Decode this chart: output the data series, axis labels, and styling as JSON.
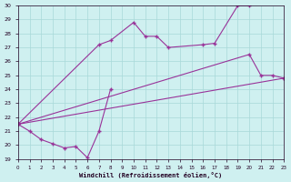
{
  "xlabel": "Windchill (Refroidissement éolien,°C)",
  "background_color": "#cff0f0",
  "grid_color": "#a8d8d8",
  "line_color": "#993399",
  "xlim": [
    0,
    23
  ],
  "ylim": [
    19,
    30
  ],
  "xticks": [
    0,
    1,
    2,
    3,
    4,
    5,
    6,
    7,
    8,
    9,
    10,
    11,
    12,
    13,
    14,
    15,
    16,
    17,
    18,
    19,
    20,
    21,
    22,
    23
  ],
  "yticks": [
    19,
    20,
    21,
    22,
    23,
    24,
    25,
    26,
    27,
    28,
    29,
    30
  ],
  "curve1": {
    "x": [
      0,
      1,
      2,
      3,
      4,
      5,
      6,
      7,
      8
    ],
    "y": [
      21.5,
      21.0,
      20.4,
      20.1,
      19.8,
      19.9,
      19.1,
      21.0,
      24.0
    ]
  },
  "curve2": {
    "x": [
      0,
      7,
      8,
      10,
      11,
      12,
      13,
      16,
      17,
      19,
      20
    ],
    "y": [
      21.5,
      27.2,
      27.5,
      28.8,
      27.8,
      27.8,
      27.0,
      27.2,
      27.3,
      30.0,
      30.0
    ]
  },
  "curve3": {
    "x": [
      0,
      20,
      21,
      22,
      23
    ],
    "y": [
      21.5,
      26.5,
      25.0,
      25.0,
      24.8
    ]
  },
  "curve4": {
    "x": [
      0,
      23
    ],
    "y": [
      21.5,
      24.8
    ]
  }
}
